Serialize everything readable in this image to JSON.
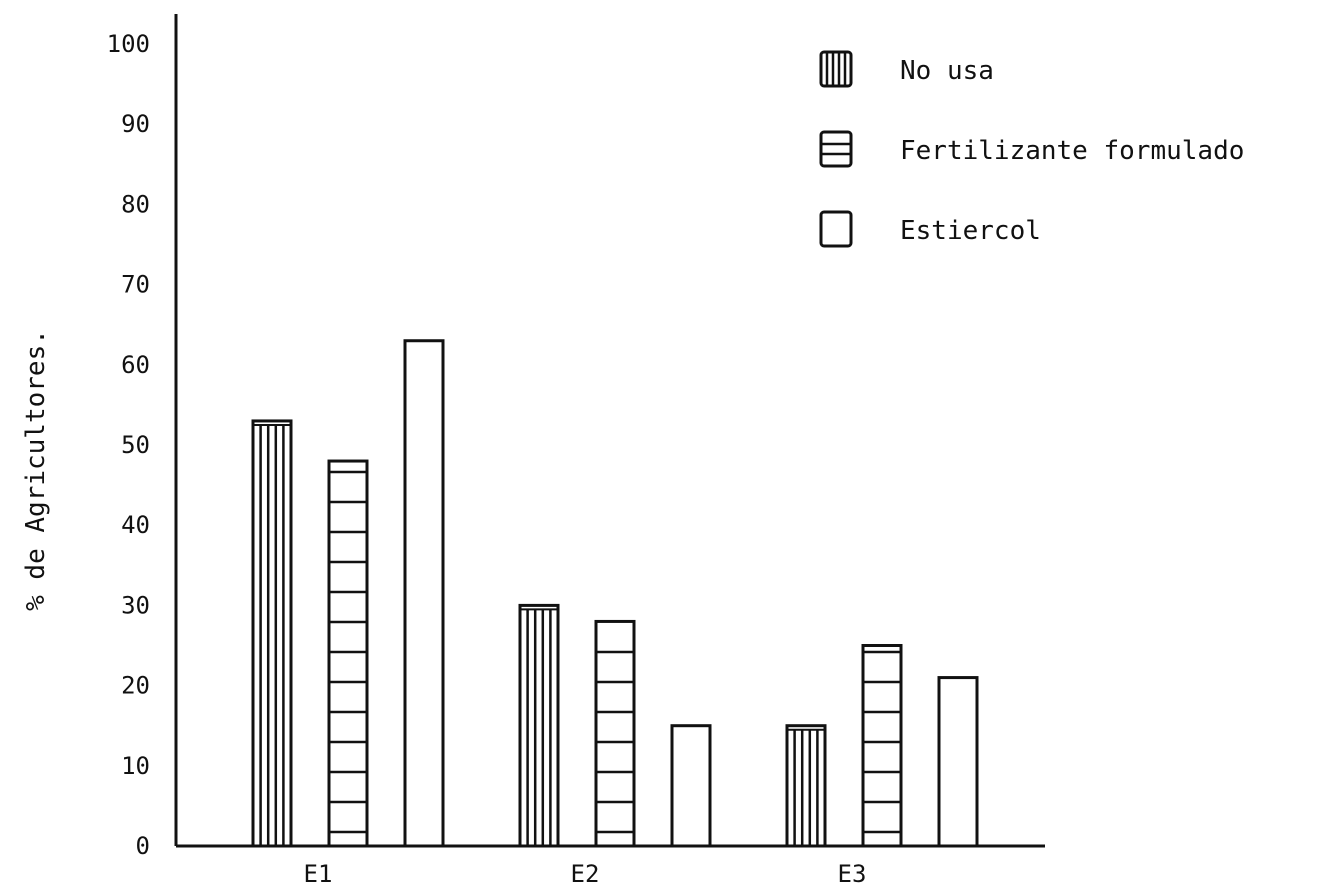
{
  "chart_data": {
    "type": "bar",
    "categories": [
      "E1",
      "E2",
      "E3"
    ],
    "series": [
      {
        "name": "No usa",
        "pattern": "vertical-stripes",
        "values": [
          53,
          30,
          15
        ]
      },
      {
        "name": "Fertilizante formulado",
        "pattern": "horizontal-stripes",
        "values": [
          48,
          28,
          25
        ]
      },
      {
        "name": "Estiercol",
        "pattern": "empty",
        "values": [
          63,
          15,
          21
        ]
      }
    ],
    "title": "",
    "xlabel": "",
    "ylabel": "% de Agricultores.",
    "ylim": [
      0,
      100
    ],
    "yticks": [
      "0",
      "10",
      "20",
      "30",
      "40",
      "50",
      "60",
      "70",
      "80",
      "90",
      "100"
    ],
    "grid": false,
    "legend_position": "top-right",
    "colors": {
      "stroke": "#111111",
      "fill": "#ffffff"
    }
  }
}
